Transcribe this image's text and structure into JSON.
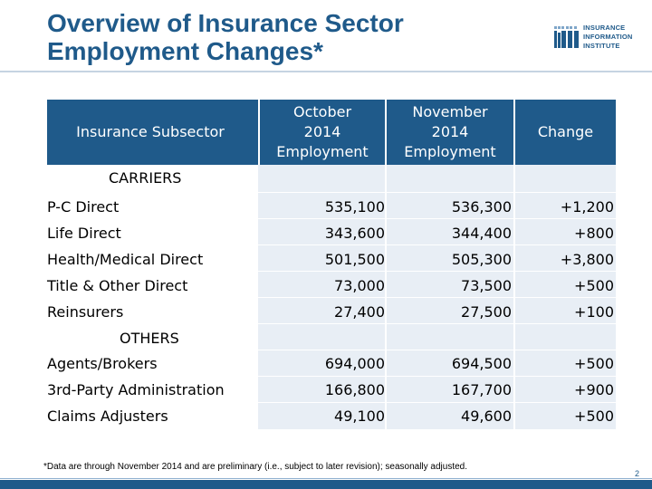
{
  "title": {
    "line1": "Overview of Insurance Sector",
    "line2": "Employment Changes*"
  },
  "logo": {
    "line1": "INSURANCE",
    "line2": "INFORMATION",
    "line3": "INSTITUTE"
  },
  "table": {
    "headers": {
      "subsector": "Insurance Subsector",
      "oct_1": "October",
      "oct_2": "2014",
      "oct_3": "Employment",
      "nov_1": "November",
      "nov_2": "2014",
      "nov_3": "Employment",
      "change": "Change"
    },
    "section_carriers": "CARRIERS",
    "carriers": [
      {
        "name": "P-C Direct",
        "oct": "535,100",
        "nov": "536,300",
        "change": "+1,200"
      },
      {
        "name": "Life Direct",
        "oct": "343,600",
        "nov": "344,400",
        "change": "+800"
      },
      {
        "name": "Health/Medical Direct",
        "oct": "501,500",
        "nov": "505,300",
        "change": "+3,800"
      },
      {
        "name": "Title & Other Direct",
        "oct": "73,000",
        "nov": "73,500",
        "change": "+500"
      },
      {
        "name": "Reinsurers",
        "oct": "27,400",
        "nov": "27,500",
        "change": "+100"
      }
    ],
    "section_others": "OTHERS",
    "others": [
      {
        "name": "Agents/Brokers",
        "oct": "694,000",
        "nov": "694,500",
        "change": "+500"
      },
      {
        "name": "3rd-Party Administration",
        "oct": "166,800",
        "nov": "167,700",
        "change": "+900"
      },
      {
        "name": "Claims Adjusters",
        "oct": "49,100",
        "nov": "49,600",
        "change": "+500"
      }
    ]
  },
  "footnote": "*Data are through November 2014 and are preliminary (i.e., subject to later revision); seasonally adjusted.",
  "page_number": "2",
  "colors": {
    "accent": "#1f5a8a",
    "band": "#e8eef5"
  }
}
